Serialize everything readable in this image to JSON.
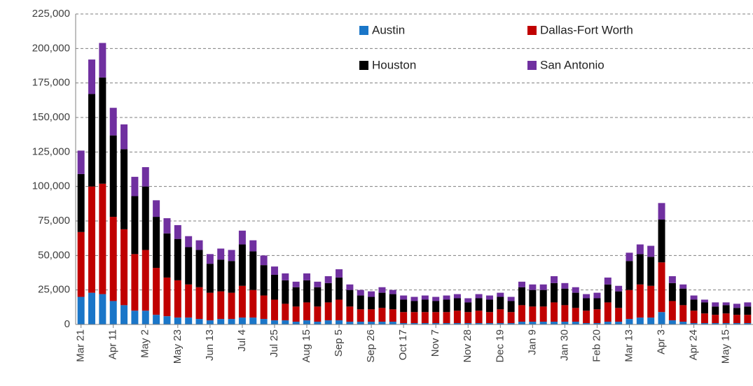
{
  "chart_data": {
    "type": "stacked_bar",
    "categories": [
      "Mar 21",
      null,
      null,
      "Apr 11",
      null,
      null,
      "May 2",
      null,
      null,
      "May 23",
      null,
      null,
      "Jun 13",
      null,
      null,
      "Jul 4",
      null,
      null,
      "Jul 25",
      null,
      null,
      "Aug 15",
      null,
      null,
      "Sep 5",
      null,
      null,
      "Sep 26",
      null,
      null,
      "Oct 17",
      null,
      null,
      "Nov 7",
      null,
      null,
      "Nov 28",
      null,
      null,
      "Dec 19",
      null,
      null,
      "Jan 9",
      null,
      null,
      "Jan 30",
      null,
      null,
      "Feb 20",
      null,
      null,
      "Mar 13",
      null,
      null,
      "Apr 3",
      null,
      null,
      "Apr 24",
      null,
      null,
      "May 15",
      null,
      null
    ],
    "series": [
      {
        "name": "Austin",
        "color": "#1a76c8",
        "values": [
          20000,
          23000,
          22000,
          17000,
          14000,
          10000,
          10000,
          7000,
          6000,
          5000,
          5000,
          4000,
          3000,
          4000,
          4000,
          5000,
          5000,
          4000,
          3000,
          3000,
          2000,
          3000,
          2000,
          3000,
          3000,
          2000,
          2000,
          2000,
          2000,
          2000,
          1000,
          1000,
          1000,
          1000,
          1000,
          1000,
          1000,
          1000,
          1000,
          1000,
          1000,
          2000,
          2000,
          2000,
          2000,
          2000,
          2000,
          1000,
          1000,
          2000,
          2000,
          4000,
          5000,
          5000,
          9000,
          3000,
          2000,
          1000,
          1000,
          1000,
          1000,
          1000,
          1000
        ]
      },
      {
        "name": "Dallas-Fort Worth",
        "color": "#c00000",
        "values": [
          47000,
          77000,
          80000,
          61000,
          55000,
          41000,
          44000,
          34000,
          28000,
          27000,
          24000,
          23000,
          20000,
          20000,
          19000,
          23000,
          20000,
          17000,
          15000,
          12000,
          11000,
          13000,
          11000,
          13000,
          15000,
          11000,
          9000,
          9000,
          10000,
          9000,
          8000,
          8000,
          8000,
          8000,
          8000,
          9000,
          8000,
          9000,
          8000,
          10000,
          8000,
          12000,
          11000,
          11000,
          14000,
          12000,
          10000,
          9000,
          10000,
          14000,
          10000,
          21000,
          24000,
          23000,
          36000,
          14000,
          12000,
          9000,
          7000,
          6000,
          7000,
          6000,
          6000
        ]
      },
      {
        "name": "Houston",
        "color": "#000000",
        "values": [
          42000,
          67000,
          77000,
          59000,
          58000,
          42000,
          46000,
          37000,
          32000,
          30000,
          27000,
          27000,
          21000,
          23000,
          23000,
          30000,
          28000,
          22000,
          18000,
          17000,
          14000,
          16000,
          14000,
          14000,
          16000,
          12000,
          10000,
          9000,
          11000,
          11000,
          9000,
          8000,
          9000,
          8000,
          9000,
          9000,
          7000,
          9000,
          9000,
          9000,
          8000,
          13000,
          12000,
          12000,
          14000,
          12000,
          11000,
          9000,
          8000,
          13000,
          12000,
          21000,
          22000,
          21000,
          31000,
          13000,
          12000,
          8000,
          8000,
          6000,
          6000,
          5000,
          6000
        ]
      },
      {
        "name": "San Antonio",
        "color": "#7030a0",
        "values": [
          17000,
          25000,
          25000,
          20000,
          18000,
          14000,
          14000,
          12000,
          11000,
          10000,
          8000,
          7000,
          7000,
          8000,
          8000,
          10000,
          8000,
          7000,
          6000,
          5000,
          4000,
          5000,
          4000,
          5000,
          6000,
          4000,
          4000,
          4000,
          4000,
          3000,
          3000,
          3000,
          3000,
          3000,
          3000,
          3000,
          3000,
          3000,
          3000,
          3000,
          3000,
          4000,
          4000,
          4000,
          5000,
          4000,
          4000,
          3000,
          4000,
          5000,
          4000,
          6000,
          7000,
          8000,
          12000,
          5000,
          3000,
          3000,
          2000,
          3000,
          2000,
          3000,
          3000
        ]
      }
    ],
    "ylim": [
      0,
      225000
    ],
    "yticks": [
      0,
      {
        "value": 25000,
        "label": "25,000"
      },
      {
        "value": 50000,
        "label": "50,000"
      },
      {
        "value": 75000,
        "label": "75,000"
      },
      {
        "value": 100000,
        "label": "100,000"
      },
      {
        "value": 125000,
        "label": "125,000"
      },
      {
        "value": 150000,
        "label": "150,000"
      },
      {
        "value": 175000,
        "label": "175,000"
      },
      {
        "value": 200000,
        "label": "200,000"
      },
      {
        "value": 225000,
        "label": "225,000"
      }
    ],
    "grid": true,
    "legend": "top"
  }
}
